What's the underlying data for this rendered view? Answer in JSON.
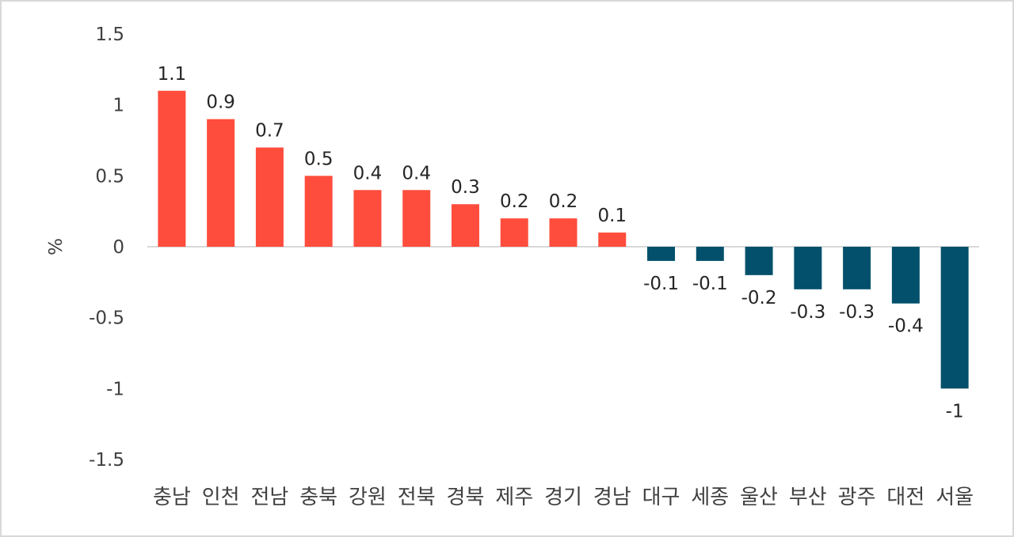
{
  "chart_data": {
    "type": "bar",
    "title": "",
    "xlabel": "",
    "ylabel": "%",
    "ylim": [
      -1.5,
      1.5
    ],
    "yticks": [
      "1.5",
      "1",
      "0.5",
      "0",
      "-0.5",
      "-1",
      "-1.5"
    ],
    "grid": false,
    "legend": null,
    "categories": [
      "충남",
      "인천",
      "전남",
      "충북",
      "강원",
      "전북",
      "경북",
      "제주",
      "경기",
      "경남",
      "대구",
      "세종",
      "울산",
      "부산",
      "광주",
      "대전",
      "서울"
    ],
    "values": [
      1.1,
      0.9,
      0.7,
      0.5,
      0.4,
      0.4,
      0.3,
      0.2,
      0.2,
      0.1,
      -0.1,
      -0.1,
      -0.2,
      -0.3,
      -0.3,
      -0.4,
      -1
    ],
    "data_labels": [
      "1.1",
      "0.9",
      "0.7",
      "0.5",
      "0.4",
      "0.4",
      "0.3",
      "0.2",
      "0.2",
      "0.1",
      "-0.1",
      "-0.1",
      "-0.2",
      "-0.3",
      "-0.3",
      "-0.4",
      "-1"
    ],
    "colors": {
      "positive": "#ff4d3d",
      "negative": "#02506b",
      "axis": "#d9d9d9"
    }
  }
}
